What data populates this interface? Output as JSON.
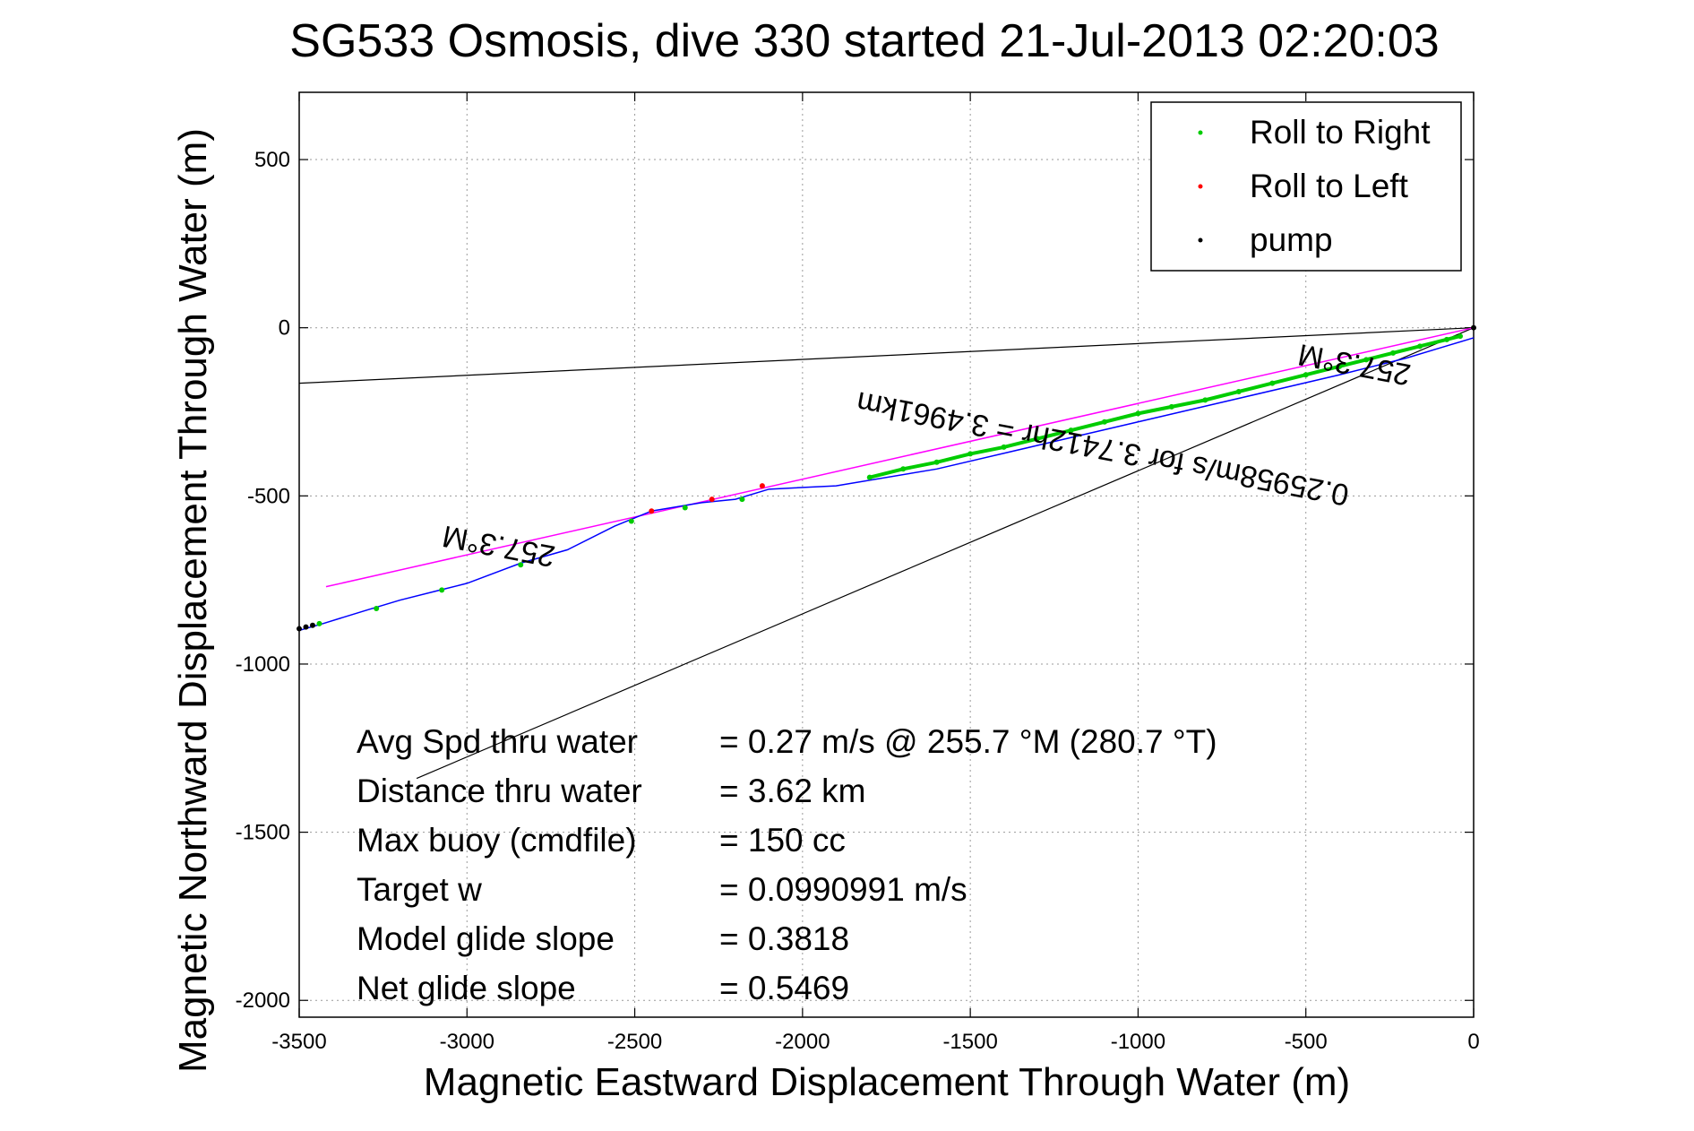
{
  "chart_data": {
    "type": "line",
    "title": "SG533 Osmosis, dive 330 started 21-Jul-2013 02:20:03",
    "xlabel": "Magnetic Eastward Displacement Through Water (m)",
    "ylabel": "Magnetic Northward Displacement Through Water (m)",
    "xlim": [
      -3500,
      0
    ],
    "ylim": [
      -2050,
      700
    ],
    "x_ticks": [
      -3500,
      -3000,
      -2500,
      -2000,
      -1500,
      -1000,
      -500,
      0
    ],
    "y_ticks": [
      500,
      0,
      -500,
      -1000,
      -1500,
      -2000
    ],
    "grid": true,
    "legend_position": "top-right",
    "legend": [
      {
        "label": "Roll to Right",
        "color": "#00cc00"
      },
      {
        "label": "Roll to Left",
        "color": "#ff0000"
      },
      {
        "label": "pump",
        "color": "#000000"
      }
    ],
    "colors": {
      "track": "#0000ff",
      "heading_line": "#ff00ff",
      "roll_right": "#00cc00",
      "roll_left": "#ff0000",
      "pump": "#000000",
      "cone": "#000000"
    },
    "track": {
      "x": [
        0,
        -100,
        -200,
        -400,
        -700,
        -1000,
        -1300,
        -1600,
        -1900,
        -2100,
        -2200,
        -2300,
        -2450,
        -2560,
        -2700,
        -2840,
        -3000,
        -3080,
        -3200,
        -3300,
        -3430,
        -3500
      ],
      "y": [
        -30,
        -60,
        -90,
        -140,
        -210,
        -280,
        -350,
        -420,
        -470,
        -480,
        -510,
        -520,
        -545,
        -590,
        -660,
        -700,
        -760,
        -780,
        -810,
        -840,
        -880,
        -900
      ]
    },
    "roll_right_points": {
      "x": [
        -40,
        -80,
        -160,
        -240,
        -320,
        -400,
        -500,
        -600,
        -700,
        -800,
        -900,
        -1000,
        -1100,
        -1200,
        -1300,
        -1400,
        -1500,
        -1600,
        -1700,
        -1800,
        -2180,
        -2350,
        -2510,
        -2840,
        -3075,
        -3270,
        -3440
      ],
      "y": [
        -25,
        -35,
        -55,
        -75,
        -95,
        -115,
        -140,
        -165,
        -190,
        -215,
        -235,
        -255,
        -280,
        -305,
        -330,
        -355,
        -375,
        -400,
        -420,
        -445,
        -510,
        -535,
        -575,
        -705,
        -780,
        -835,
        -880
      ]
    },
    "roll_left_points": {
      "x": [
        -2120,
        -2270,
        -2450
      ],
      "y": [
        -470,
        -510,
        -545
      ]
    },
    "pump_points": {
      "x": [
        0,
        -3460,
        -3480,
        -3500
      ],
      "y": [
        0,
        -885,
        -890,
        -895
      ]
    },
    "heading_line": {
      "x": [
        0,
        -3420
      ],
      "y": [
        0,
        -770
      ]
    },
    "cone_lines": [
      {
        "x": [
          0,
          -3500
        ],
        "y": [
          0,
          -165
        ]
      },
      {
        "x": [
          0,
          -3150
        ],
        "y": [
          0,
          -1340
        ]
      }
    ],
    "annotations": [
      {
        "text": "257.3°M",
        "x": -350,
        "y": -80,
        "rotation": 10.8
      },
      {
        "text": "0.25958m/s for 3.7412hr = 3.4961km",
        "x": -1100,
        "y": -330,
        "rotation": 10.8
      },
      {
        "text": "257.3°M",
        "x": -2900,
        "y": -620,
        "rotation": 10.8
      }
    ],
    "stats": [
      {
        "label": "Avg Spd thru water",
        "value": "=  0.27 m/s @ 255.7 °M (280.7 °T)"
      },
      {
        "label": "Distance thru water",
        "value": "=  3.62 km"
      },
      {
        "label": "Max buoy (cmdfile)",
        "value": "= 150 cc"
      },
      {
        "label": "Target w",
        "value": "= 0.0990991 m/s"
      },
      {
        "label": "Model glide slope",
        "value": "= 0.3818"
      },
      {
        "label": "Net glide slope",
        "value": "= 0.5469"
      }
    ]
  }
}
